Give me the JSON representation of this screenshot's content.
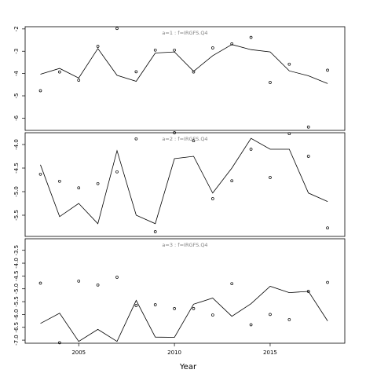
{
  "chart_data": {
    "type": "line",
    "xlabel": "Year",
    "xlim": [
      2002.2,
      2018.9
    ],
    "x_ticks": [
      2005,
      2010,
      2015
    ],
    "grid": false,
    "panels": [
      {
        "label": "a=1  :  f=IRGFS.Q4",
        "ylim": [
          -6.55,
          -1.9
        ],
        "y_ticks": [
          -2,
          -3,
          -4,
          -5,
          -6
        ],
        "series": [
          {
            "kind": "line",
            "x": [
              2003,
              2004,
              2005,
              2006,
              2007,
              2008,
              2009,
              2010,
              2011,
              2012,
              2013,
              2014,
              2015,
              2016,
              2017,
              2018
            ],
            "y": [
              -4.03,
              -3.77,
              -4.2,
              -2.88,
              -4.08,
              -4.35,
              -3.08,
              -3.03,
              -3.9,
              -3.2,
              -2.7,
              -2.93,
              -3.03,
              -3.88,
              -4.1,
              -4.45
            ]
          },
          {
            "kind": "points",
            "x": [
              2003,
              2004,
              2005,
              2006,
              2007,
              2008,
              2009,
              2010,
              2011,
              2012,
              2013,
              2014,
              2015,
              2016,
              2017,
              2018
            ],
            "y": [
              -4.77,
              -3.93,
              -4.3,
              -2.78,
              -1.98,
              -3.92,
              -2.95,
              -2.95,
              -3.93,
              -2.85,
              -2.67,
              -2.38,
              -4.4,
              -3.58,
              -6.4,
              -3.85
            ]
          }
        ]
      },
      {
        "label": "a=2  :  f=IRGFS.Q4",
        "ylim": [
          -5.95,
          -3.75
        ],
        "y_ticks": [
          -4.0,
          -4.5,
          -5.0,
          -5.5
        ],
        "series": [
          {
            "kind": "line",
            "x": [
              2003,
              2004,
              2005,
              2006,
              2007,
              2008,
              2009,
              2010,
              2011,
              2012,
              2013,
              2014,
              2015,
              2016,
              2017,
              2018
            ],
            "y": [
              -4.43,
              -5.53,
              -5.25,
              -5.68,
              -4.13,
              -5.5,
              -5.68,
              -4.3,
              -4.25,
              -5.03,
              -4.5,
              -3.87,
              -4.1,
              -4.1,
              -5.03,
              -5.21
            ]
          },
          {
            "kind": "points",
            "x": [
              2003,
              2004,
              2005,
              2006,
              2007,
              2008,
              2009,
              2010,
              2011,
              2012,
              2013,
              2014,
              2015,
              2016,
              2017,
              2018
            ],
            "y": [
              -4.63,
              -4.78,
              -4.92,
              -4.83,
              -4.58,
              -3.88,
              -5.85,
              -3.75,
              -3.92,
              -5.15,
              -4.77,
              -4.1,
              -4.7,
              -3.77,
              -4.25,
              -5.77
            ]
          }
        ]
      },
      {
        "label": "a=3  :  f=IRGFS.Q4",
        "ylim": [
          -7.12,
          -3.05
        ],
        "y_ticks": [
          -3.5,
          -4.0,
          -4.5,
          -5.0,
          -5.5,
          -6.0,
          -6.5,
          -7.0
        ],
        "series": [
          {
            "kind": "line",
            "x": [
              2003,
              2004,
              2005,
              2006,
              2007,
              2008,
              2009,
              2010,
              2011,
              2012,
              2013,
              2014,
              2015,
              2016,
              2017,
              2018
            ],
            "y": [
              -6.35,
              -5.95,
              -7.05,
              -6.58,
              -7.05,
              -5.45,
              -6.88,
              -6.89,
              -5.6,
              -5.36,
              -6.07,
              -5.58,
              -4.9,
              -5.15,
              -5.1,
              -6.25
            ]
          },
          {
            "kind": "points",
            "x": [
              2003,
              2004,
              2005,
              2006,
              2007,
              2008,
              2009,
              2010,
              2011,
              2012,
              2013,
              2014,
              2015,
              2016,
              2017,
              2018
            ],
            "y": [
              -4.78,
              -7.1,
              -4.7,
              -4.85,
              -4.55,
              -5.65,
              -5.62,
              -5.77,
              -5.77,
              -6.02,
              -4.8,
              -6.4,
              -6.0,
              -6.2,
              -5.1,
              -4.75
            ]
          }
        ]
      }
    ]
  }
}
